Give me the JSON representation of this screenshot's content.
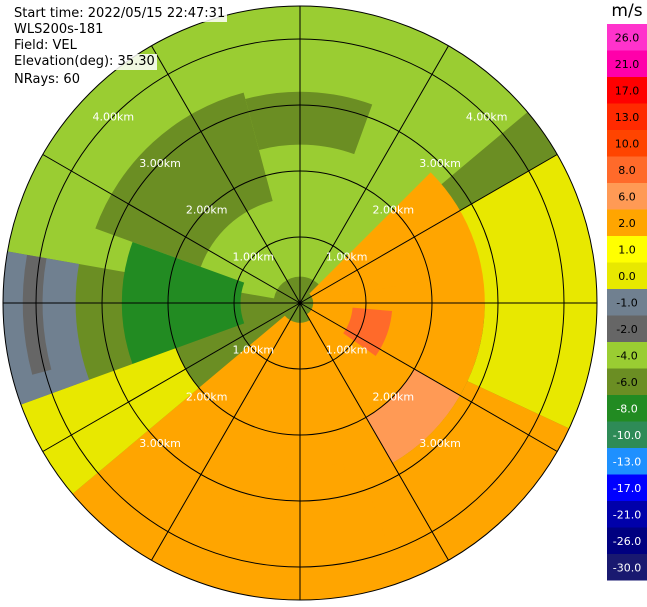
{
  "info": {
    "start_time": "Start time: 2022/05/15 22:47:31",
    "device": "WLS200s-181",
    "field": "Field: VEL",
    "elevation": "Elevation(deg): 35.30",
    "nrays": "NRays: 60"
  },
  "chart_data": {
    "type": "ppi-radar-scan",
    "field": "VEL",
    "elevation_deg": 35.3,
    "nrays": 60,
    "max_range_km": 4.5,
    "range_rings_km": [
      1,
      2,
      3,
      4
    ],
    "range_ring_labels": [
      "1.00km",
      "2.00km",
      "3.00km",
      "4.00km"
    ],
    "spokes_deg": [
      0,
      30,
      60,
      90,
      120,
      150,
      180,
      210,
      240,
      270,
      300,
      330
    ],
    "colorbar": {
      "unit": "m/s",
      "ticks": [
        "26.0",
        "21.0",
        "17.0",
        "13.0",
        "10.0",
        "8.0",
        "6.0",
        "2.0",
        "1.0",
        "0.0",
        "-1.0",
        "-2.0",
        "-4.0",
        "-6.0",
        "-8.0",
        "-10.0",
        "-13.0",
        "-17.0",
        "-21.0",
        "-26.0",
        "-30.0"
      ],
      "colors": [
        "#ff33cc",
        "#ff00aa",
        "#ff0000",
        "#ff2a00",
        "#ff4400",
        "#ff6a2a",
        "#ff9a55",
        "#ffa500",
        "#ffff00",
        "#e8e800",
        "#708090",
        "#666666",
        "#9acd32",
        "#6b8e23",
        "#228b22",
        "#2e8b57",
        "#1e90ff",
        "#0000ff",
        "#0000aa",
        "#000080",
        "#191970"
      ]
    },
    "sectors": [
      {
        "from_deg": 280,
        "to_deg": 360,
        "r0_km": 0.4,
        "r1_km": 4.5,
        "velocity_ms": -3.0
      },
      {
        "from_deg": 0,
        "to_deg": 50,
        "r0_km": 0.4,
        "r1_km": 4.5,
        "velocity_ms": -3.0
      },
      {
        "from_deg": 290,
        "to_deg": 345,
        "r0_km": 1.6,
        "r1_km": 3.3,
        "velocity_ms": -5.0
      },
      {
        "from_deg": 250,
        "to_deg": 290,
        "r0_km": 0.9,
        "r1_km": 2.7,
        "velocity_ms": -7.0
      },
      {
        "from_deg": 345,
        "to_deg": 20,
        "r0_km": 2.4,
        "r1_km": 3.2,
        "velocity_ms": -5.0
      },
      {
        "from_deg": 60,
        "to_deg": 90,
        "r0_km": 2.4,
        "r1_km": 4.5,
        "velocity_ms": 0.0
      },
      {
        "from_deg": 90,
        "to_deg": 115,
        "r0_km": 2.8,
        "r1_km": 4.5,
        "velocity_ms": 0.0
      },
      {
        "from_deg": 45,
        "to_deg": 150,
        "r0_km": 0.2,
        "r1_km": 2.8,
        "velocity_ms": 2.0
      },
      {
        "from_deg": 80,
        "to_deg": 160,
        "r0_km": 0.6,
        "r1_km": 2.0,
        "velocity_ms": 5.0
      },
      {
        "from_deg": 95,
        "to_deg": 125,
        "r0_km": 0.8,
        "r1_km": 1.4,
        "velocity_ms": 8.0
      },
      {
        "from_deg": 120,
        "to_deg": 150,
        "r0_km": 2.0,
        "r1_km": 2.8,
        "velocity_ms": 7.0
      },
      {
        "from_deg": 150,
        "to_deg": 230,
        "r0_km": 0.3,
        "r1_km": 4.5,
        "velocity_ms": 2.0
      },
      {
        "from_deg": 165,
        "to_deg": 205,
        "r0_km": 2.5,
        "r1_km": 3.2,
        "velocity_ms": 5.0
      },
      {
        "from_deg": 115,
        "to_deg": 160,
        "r0_km": 2.8,
        "r1_km": 4.5,
        "velocity_ms": 2.0
      },
      {
        "from_deg": 230,
        "to_deg": 250,
        "r0_km": 2.0,
        "r1_km": 4.5,
        "velocity_ms": 0.0
      },
      {
        "from_deg": 250,
        "to_deg": 280,
        "r0_km": 3.4,
        "r1_km": 4.5,
        "velocity_ms": -1.0
      },
      {
        "from_deg": 255,
        "to_deg": 280,
        "r0_km": 3.9,
        "r1_km": 4.2,
        "velocity_ms": -2.0
      }
    ]
  }
}
